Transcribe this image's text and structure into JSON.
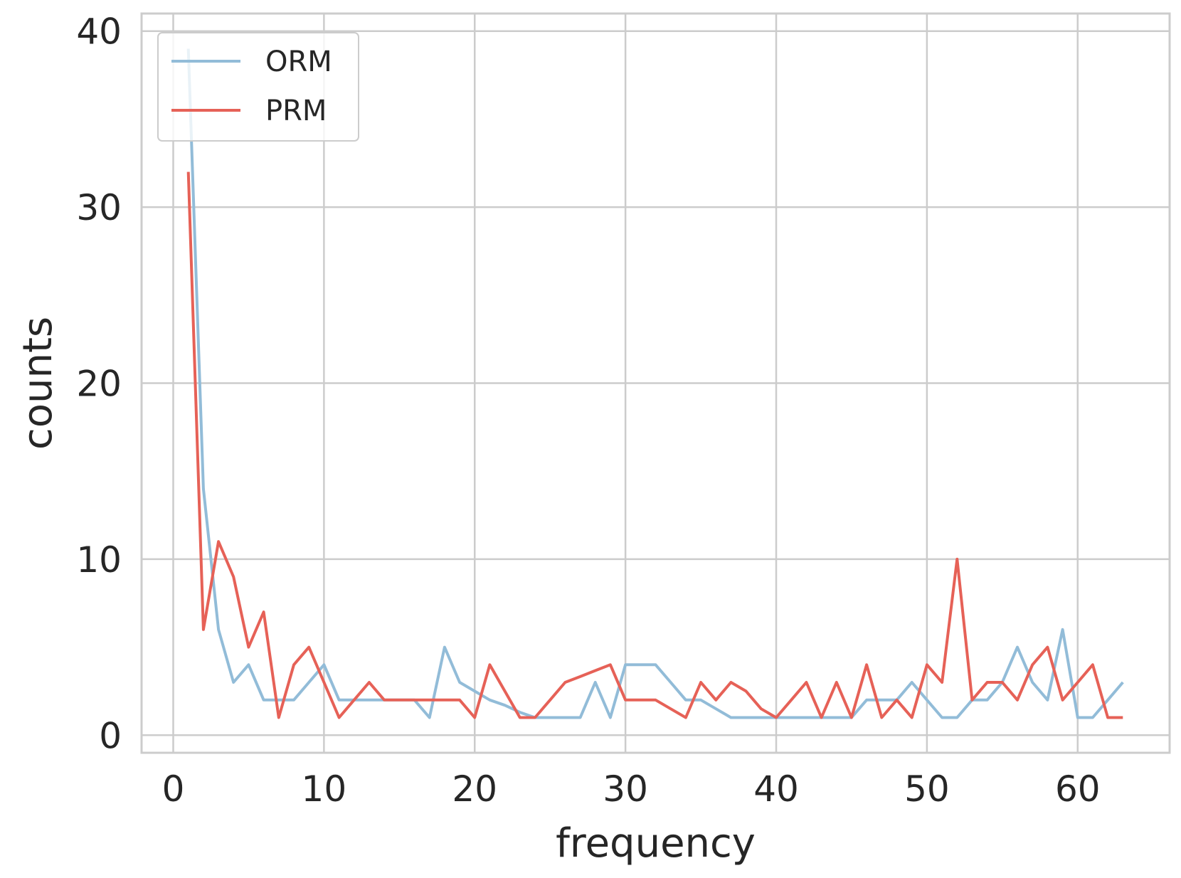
{
  "chart_data": {
    "type": "line",
    "title": "",
    "xlabel": "frequency",
    "ylabel": "counts",
    "xlim": [
      -2.1,
      66.1
    ],
    "ylim": [
      -1,
      41
    ],
    "xticks": [
      0,
      10,
      20,
      30,
      40,
      50,
      60
    ],
    "yticks": [
      0,
      10,
      20,
      30,
      40
    ],
    "grid": true,
    "legend": "top-left",
    "colors": {
      "ORM": "#92bcd8",
      "PRM": "#e66157",
      "grid": "#cccccc",
      "frame": "#cccccc"
    },
    "x": [
      1,
      2,
      3,
      4,
      5,
      6,
      7,
      8,
      9,
      10,
      11,
      12,
      13,
      14,
      15,
      16,
      17,
      18,
      19,
      20,
      21,
      22,
      23,
      24,
      25,
      26,
      27,
      28,
      29,
      30,
      31,
      32,
      33,
      34,
      35,
      36,
      37,
      38,
      39,
      40,
      41,
      42,
      43,
      44,
      45,
      46,
      47,
      48,
      49,
      50,
      51,
      52,
      53,
      54,
      55,
      56,
      57,
      58,
      59,
      60,
      61,
      62,
      63
    ],
    "series": [
      {
        "name": "ORM",
        "values": [
          39,
          14,
          6,
          3,
          4,
          2,
          2,
          2,
          3,
          4,
          2,
          2,
          2,
          2,
          2,
          2,
          1,
          5,
          3,
          2.5,
          2,
          1.7,
          1.3,
          1,
          1,
          1,
          1,
          3,
          1,
          4,
          4,
          4,
          3,
          2,
          2,
          1.5,
          1,
          1,
          1,
          1,
          1,
          1,
          1,
          1,
          1,
          2,
          2,
          2,
          3,
          2,
          1,
          1,
          2,
          2,
          3,
          5,
          3,
          2,
          6,
          1,
          1,
          2,
          3
        ]
      },
      {
        "name": "PRM",
        "values": [
          32,
          6,
          11,
          9,
          5,
          7,
          1,
          4,
          5,
          3,
          1,
          2,
          3,
          2,
          2,
          2,
          2,
          2,
          2,
          1,
          4,
          2.5,
          1,
          1,
          2,
          3,
          3.33,
          3.67,
          4,
          2,
          2,
          2,
          1.5,
          1,
          3,
          2,
          3,
          2.5,
          1.5,
          1,
          2,
          3,
          1,
          3,
          1,
          4,
          1,
          2,
          1,
          4,
          3,
          10,
          2,
          3,
          3,
          2,
          4,
          5,
          2,
          3,
          4,
          1,
          1
        ]
      }
    ]
  }
}
